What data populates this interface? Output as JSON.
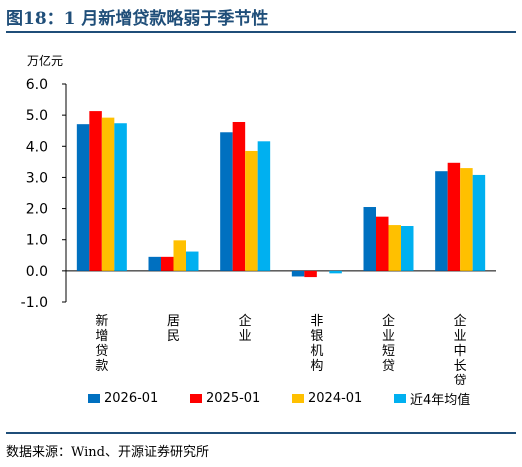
{
  "header": {
    "title": "图18：1 月新增贷款略弱于季节性"
  },
  "source": "数据来源：Wind、开源证券研究所",
  "chart_data": {
    "type": "bar",
    "unit": "万亿元",
    "categories": [
      "新增贷款",
      "居民",
      "企业",
      "非银机构",
      "企业短贷",
      "企业中长贷"
    ],
    "series": [
      {
        "name": "2026-01",
        "color": "#0070c0",
        "values": [
          4.71,
          0.45,
          4.45,
          -0.18,
          2.05,
          3.2
        ]
      },
      {
        "name": "2025-01",
        "color": "#ff0000",
        "values": [
          5.13,
          0.45,
          4.78,
          -0.2,
          1.74,
          3.47
        ]
      },
      {
        "name": "2024-01",
        "color": "#ffc000",
        "values": [
          4.92,
          0.98,
          3.85,
          0.0,
          1.47,
          3.3
        ]
      },
      {
        "name": "近4年均值",
        "color": "#00b0f0",
        "values": [
          4.74,
          0.62,
          4.16,
          -0.08,
          1.44,
          3.08
        ]
      }
    ],
    "ylim": [
      -1.0,
      6.0
    ],
    "yticks": [
      "-1.0",
      "0.0",
      "1.0",
      "2.0",
      "3.0",
      "4.0",
      "5.0",
      "6.0"
    ],
    "legend_position": "bottom"
  }
}
